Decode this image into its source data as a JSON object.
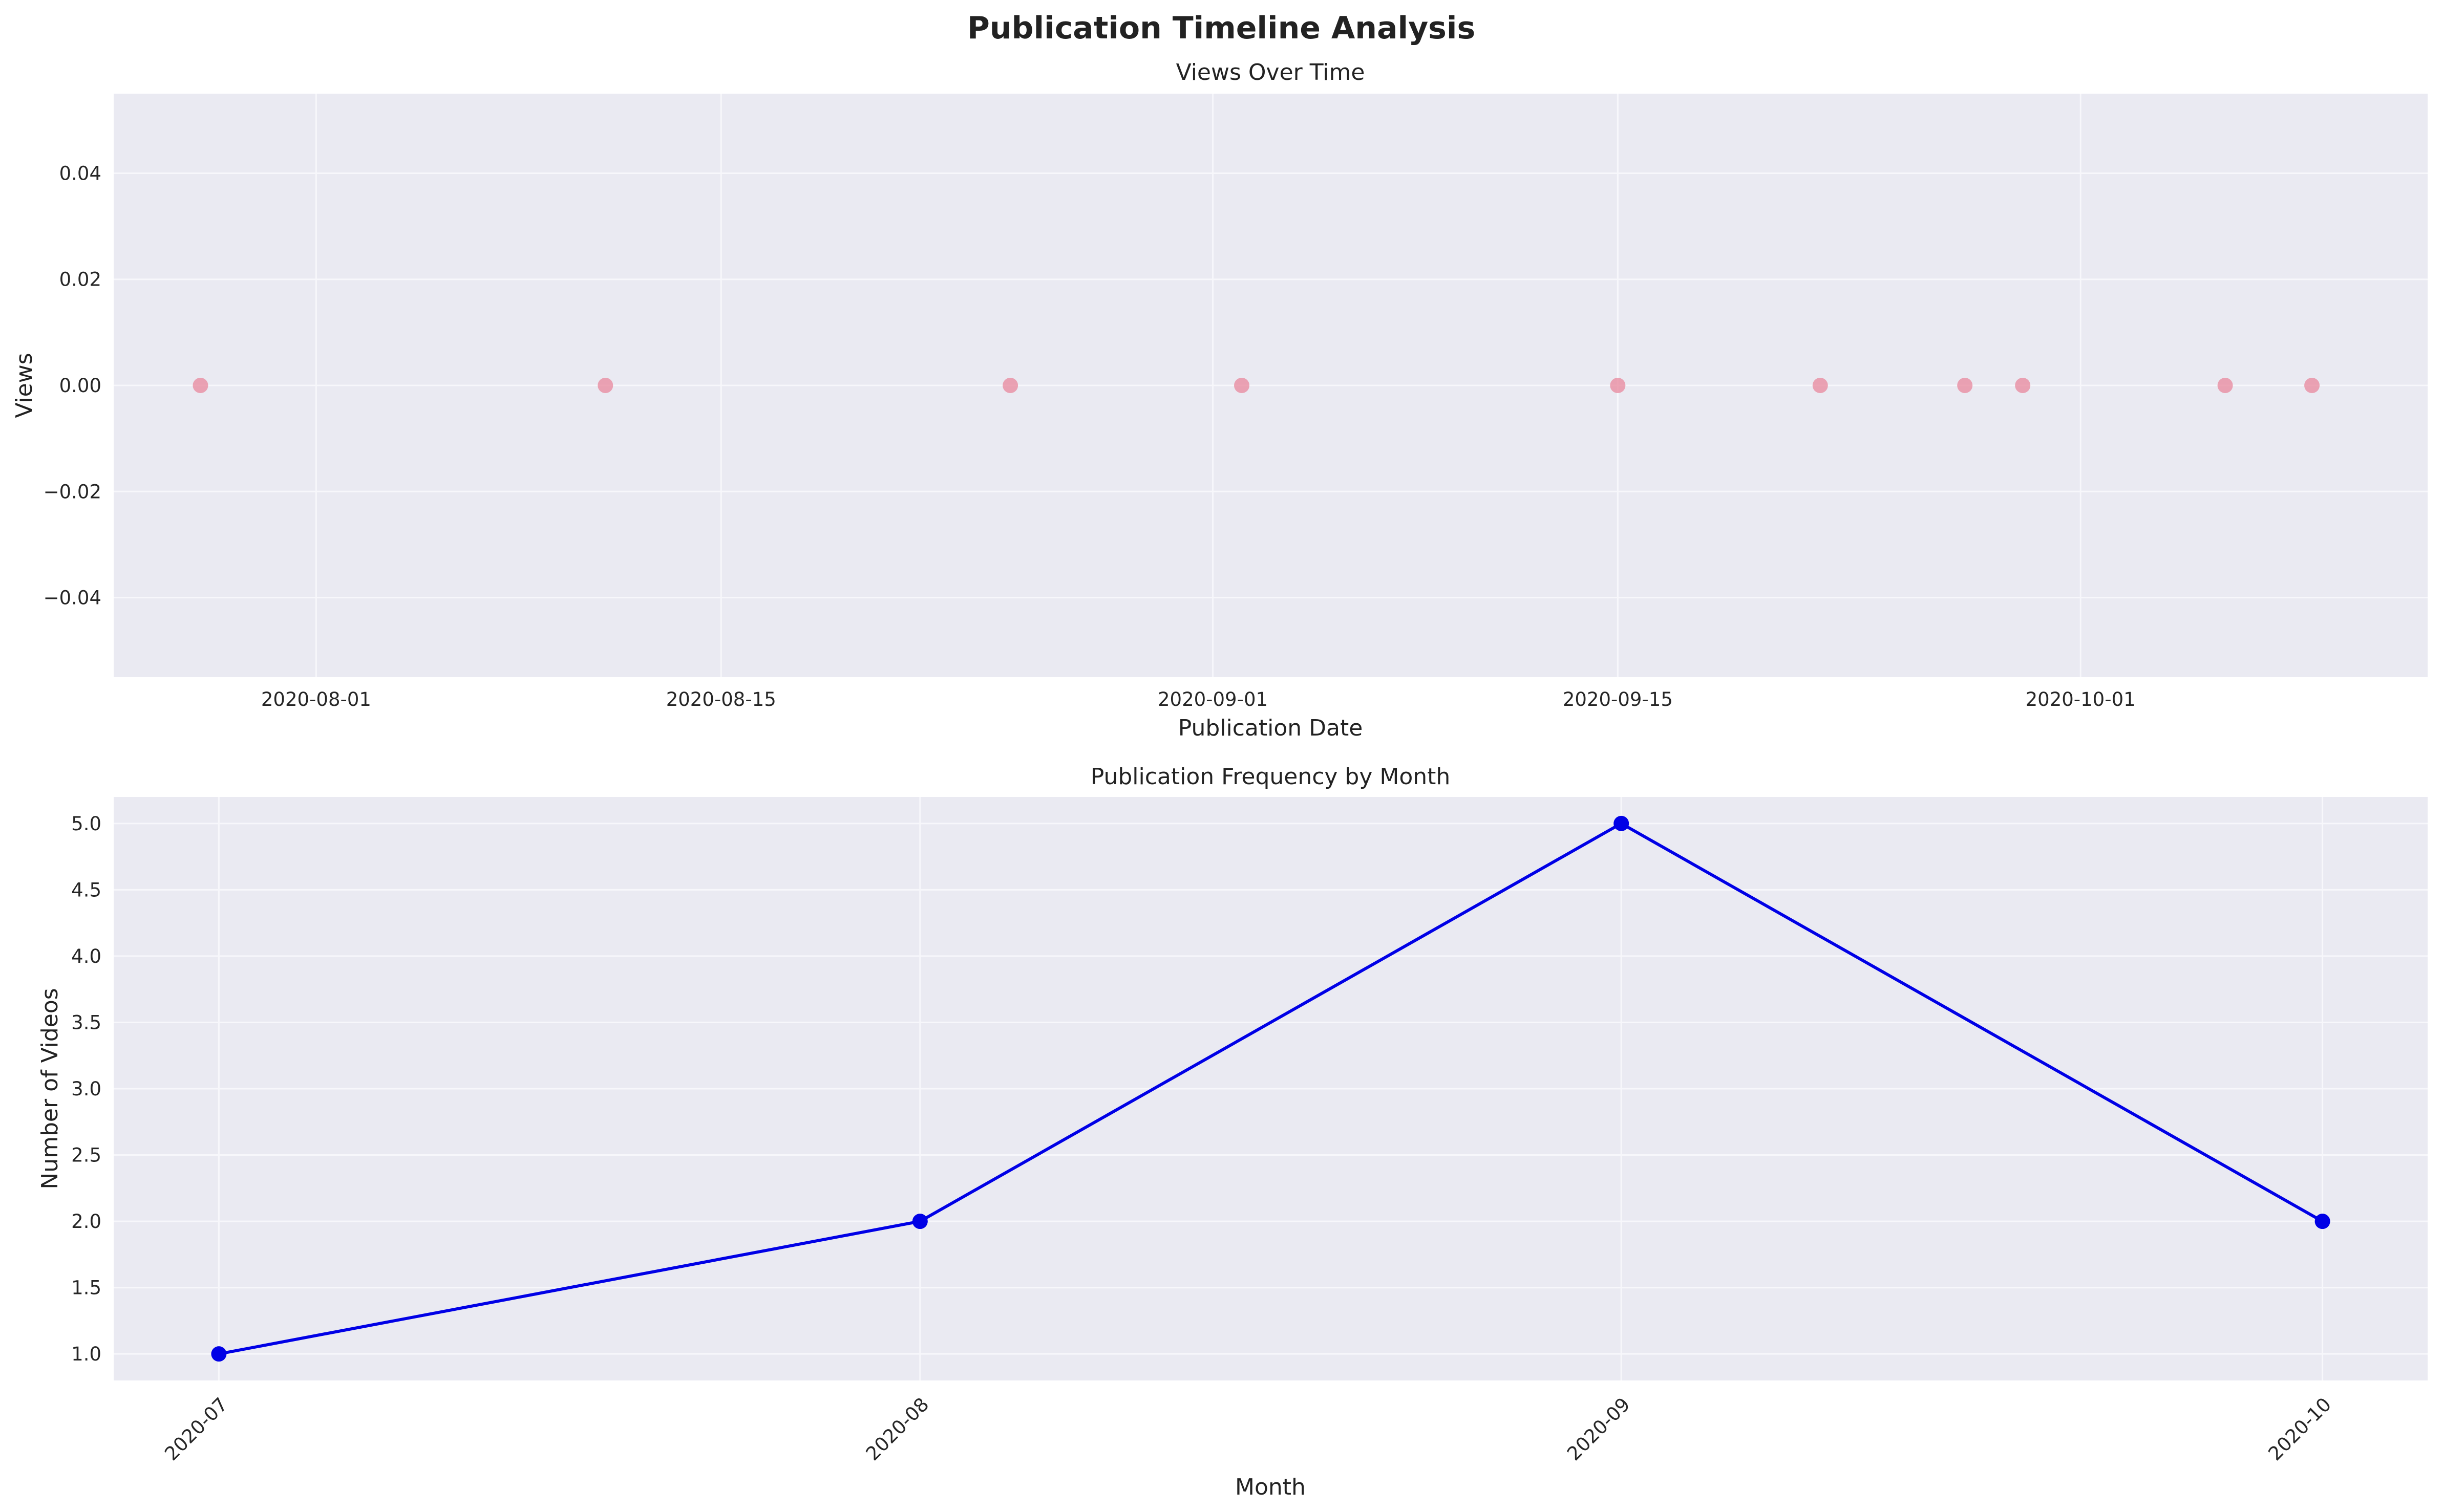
{
  "figure": {
    "title": "Publication Timeline Analysis"
  },
  "chart_data": [
    {
      "type": "scatter",
      "title": "Views Over Time",
      "xlabel": "Publication Date",
      "ylabel": "Views",
      "x_type": "date",
      "xlim": [
        "2020-07-25",
        "2020-10-13"
      ],
      "ylim": [
        -0.055,
        0.055
      ],
      "x_ticks": [
        "2020-08-01",
        "2020-08-15",
        "2020-09-01",
        "2020-09-15",
        "2020-10-01"
      ],
      "y_ticks": [
        0.04,
        0.02,
        0.0,
        -0.02,
        -0.04
      ],
      "y_tick_labels": [
        "0.04",
        "0.02",
        "0.00",
        "−0.02",
        "−0.04"
      ],
      "grid": true,
      "marker_color": "#e8879c",
      "points": [
        {
          "x": "2020-07-28",
          "y": 0
        },
        {
          "x": "2020-08-11",
          "y": 0
        },
        {
          "x": "2020-08-25",
          "y": 0
        },
        {
          "x": "2020-09-02",
          "y": 0
        },
        {
          "x": "2020-09-15",
          "y": 0
        },
        {
          "x": "2020-09-22",
          "y": 0
        },
        {
          "x": "2020-09-27",
          "y": 0
        },
        {
          "x": "2020-09-29",
          "y": 0
        },
        {
          "x": "2020-10-06",
          "y": 0
        },
        {
          "x": "2020-10-09",
          "y": 0
        }
      ]
    },
    {
      "type": "line",
      "title": "Publication Frequency by Month",
      "xlabel": "Month",
      "ylabel": "Number of Videos",
      "categories": [
        "2020-07",
        "2020-08",
        "2020-09",
        "2020-10"
      ],
      "values": [
        1,
        2,
        5,
        2
      ],
      "ylim": [
        0.8,
        5.2
      ],
      "y_ticks": [
        5.0,
        4.5,
        4.0,
        3.5,
        3.0,
        2.5,
        2.0,
        1.5,
        1.0
      ],
      "y_tick_labels": [
        "5.0",
        "4.5",
        "4.0",
        "3.5",
        "3.0",
        "2.5",
        "2.0",
        "1.5",
        "1.0"
      ],
      "grid": true,
      "line_color": "#0000e6",
      "x_tick_rotation": -45
    }
  ],
  "style": {
    "axes_bg": "#eaeaf2",
    "grid_color": "#f7f7fb",
    "text_color": "#222222"
  }
}
